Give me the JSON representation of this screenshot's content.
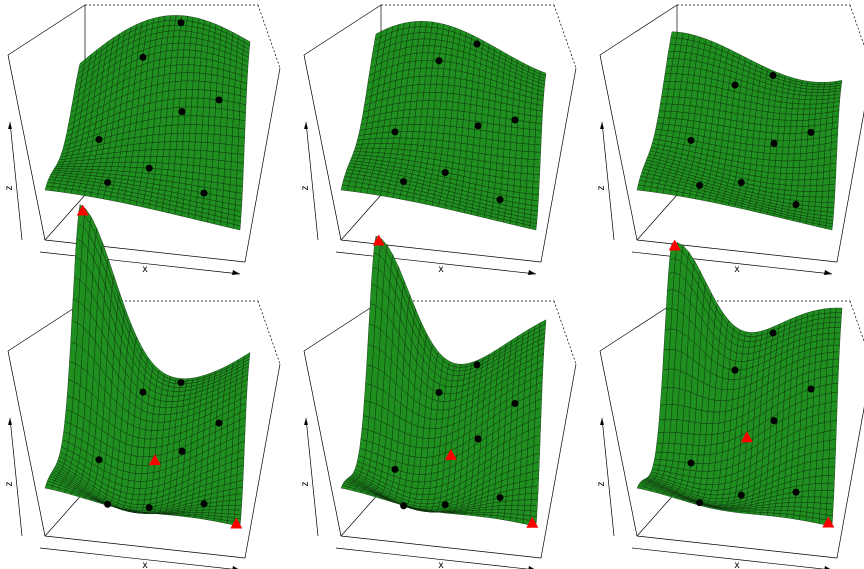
{
  "panels": [
    {
      "x_label": "x",
      "z_label": "z"
    },
    {
      "x_label": "x",
      "z_label": "z"
    },
    {
      "x_label": "x",
      "z_label": "z"
    },
    {
      "x_label": "x",
      "z_label": "z"
    },
    {
      "x_label": "x",
      "z_label": "z"
    },
    {
      "x_label": "x",
      "z_label": "z"
    }
  ]
}
